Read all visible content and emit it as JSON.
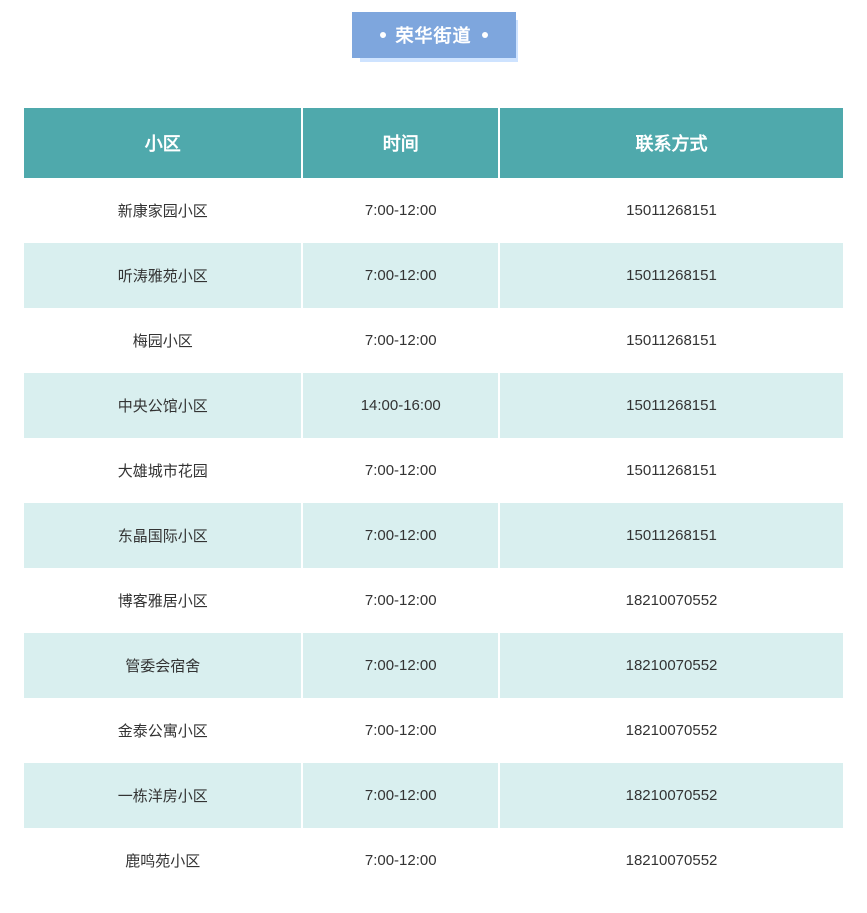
{
  "title": "荣华街道",
  "table": {
    "columns": [
      "小区",
      "时间",
      "联系方式"
    ],
    "rows": [
      [
        "新康家园小区",
        "7:00-12:00",
        "15011268151"
      ],
      [
        "听涛雅苑小区",
        "7:00-12:00",
        "15011268151"
      ],
      [
        "梅园小区",
        "7:00-12:00",
        "15011268151"
      ],
      [
        "中央公馆小区",
        "14:00-16:00",
        "15011268151"
      ],
      [
        "大雄城市花园",
        "7:00-12:00",
        "15011268151"
      ],
      [
        "东晶国际小区",
        "7:00-12:00",
        "15011268151"
      ],
      [
        "博客雅居小区",
        "7:00-12:00",
        "18210070552"
      ],
      [
        "管委会宿舍",
        "7:00-12:00",
        "18210070552"
      ],
      [
        "金泰公寓小区",
        "7:00-12:00",
        "18210070552"
      ],
      [
        "一栋洋房小区",
        "7:00-12:00",
        "18210070552"
      ],
      [
        "鹿鸣苑小区",
        "7:00-12:00",
        "18210070552"
      ]
    ],
    "header_bg_color": "#4fa9ac",
    "header_text_color": "#ffffff",
    "row_odd_bg": "#ffffff",
    "row_even_bg": "#d9efef",
    "title_bg_color": "#7ea6dd",
    "title_shadow_color": "#cee3ff",
    "text_color": "#333333"
  }
}
